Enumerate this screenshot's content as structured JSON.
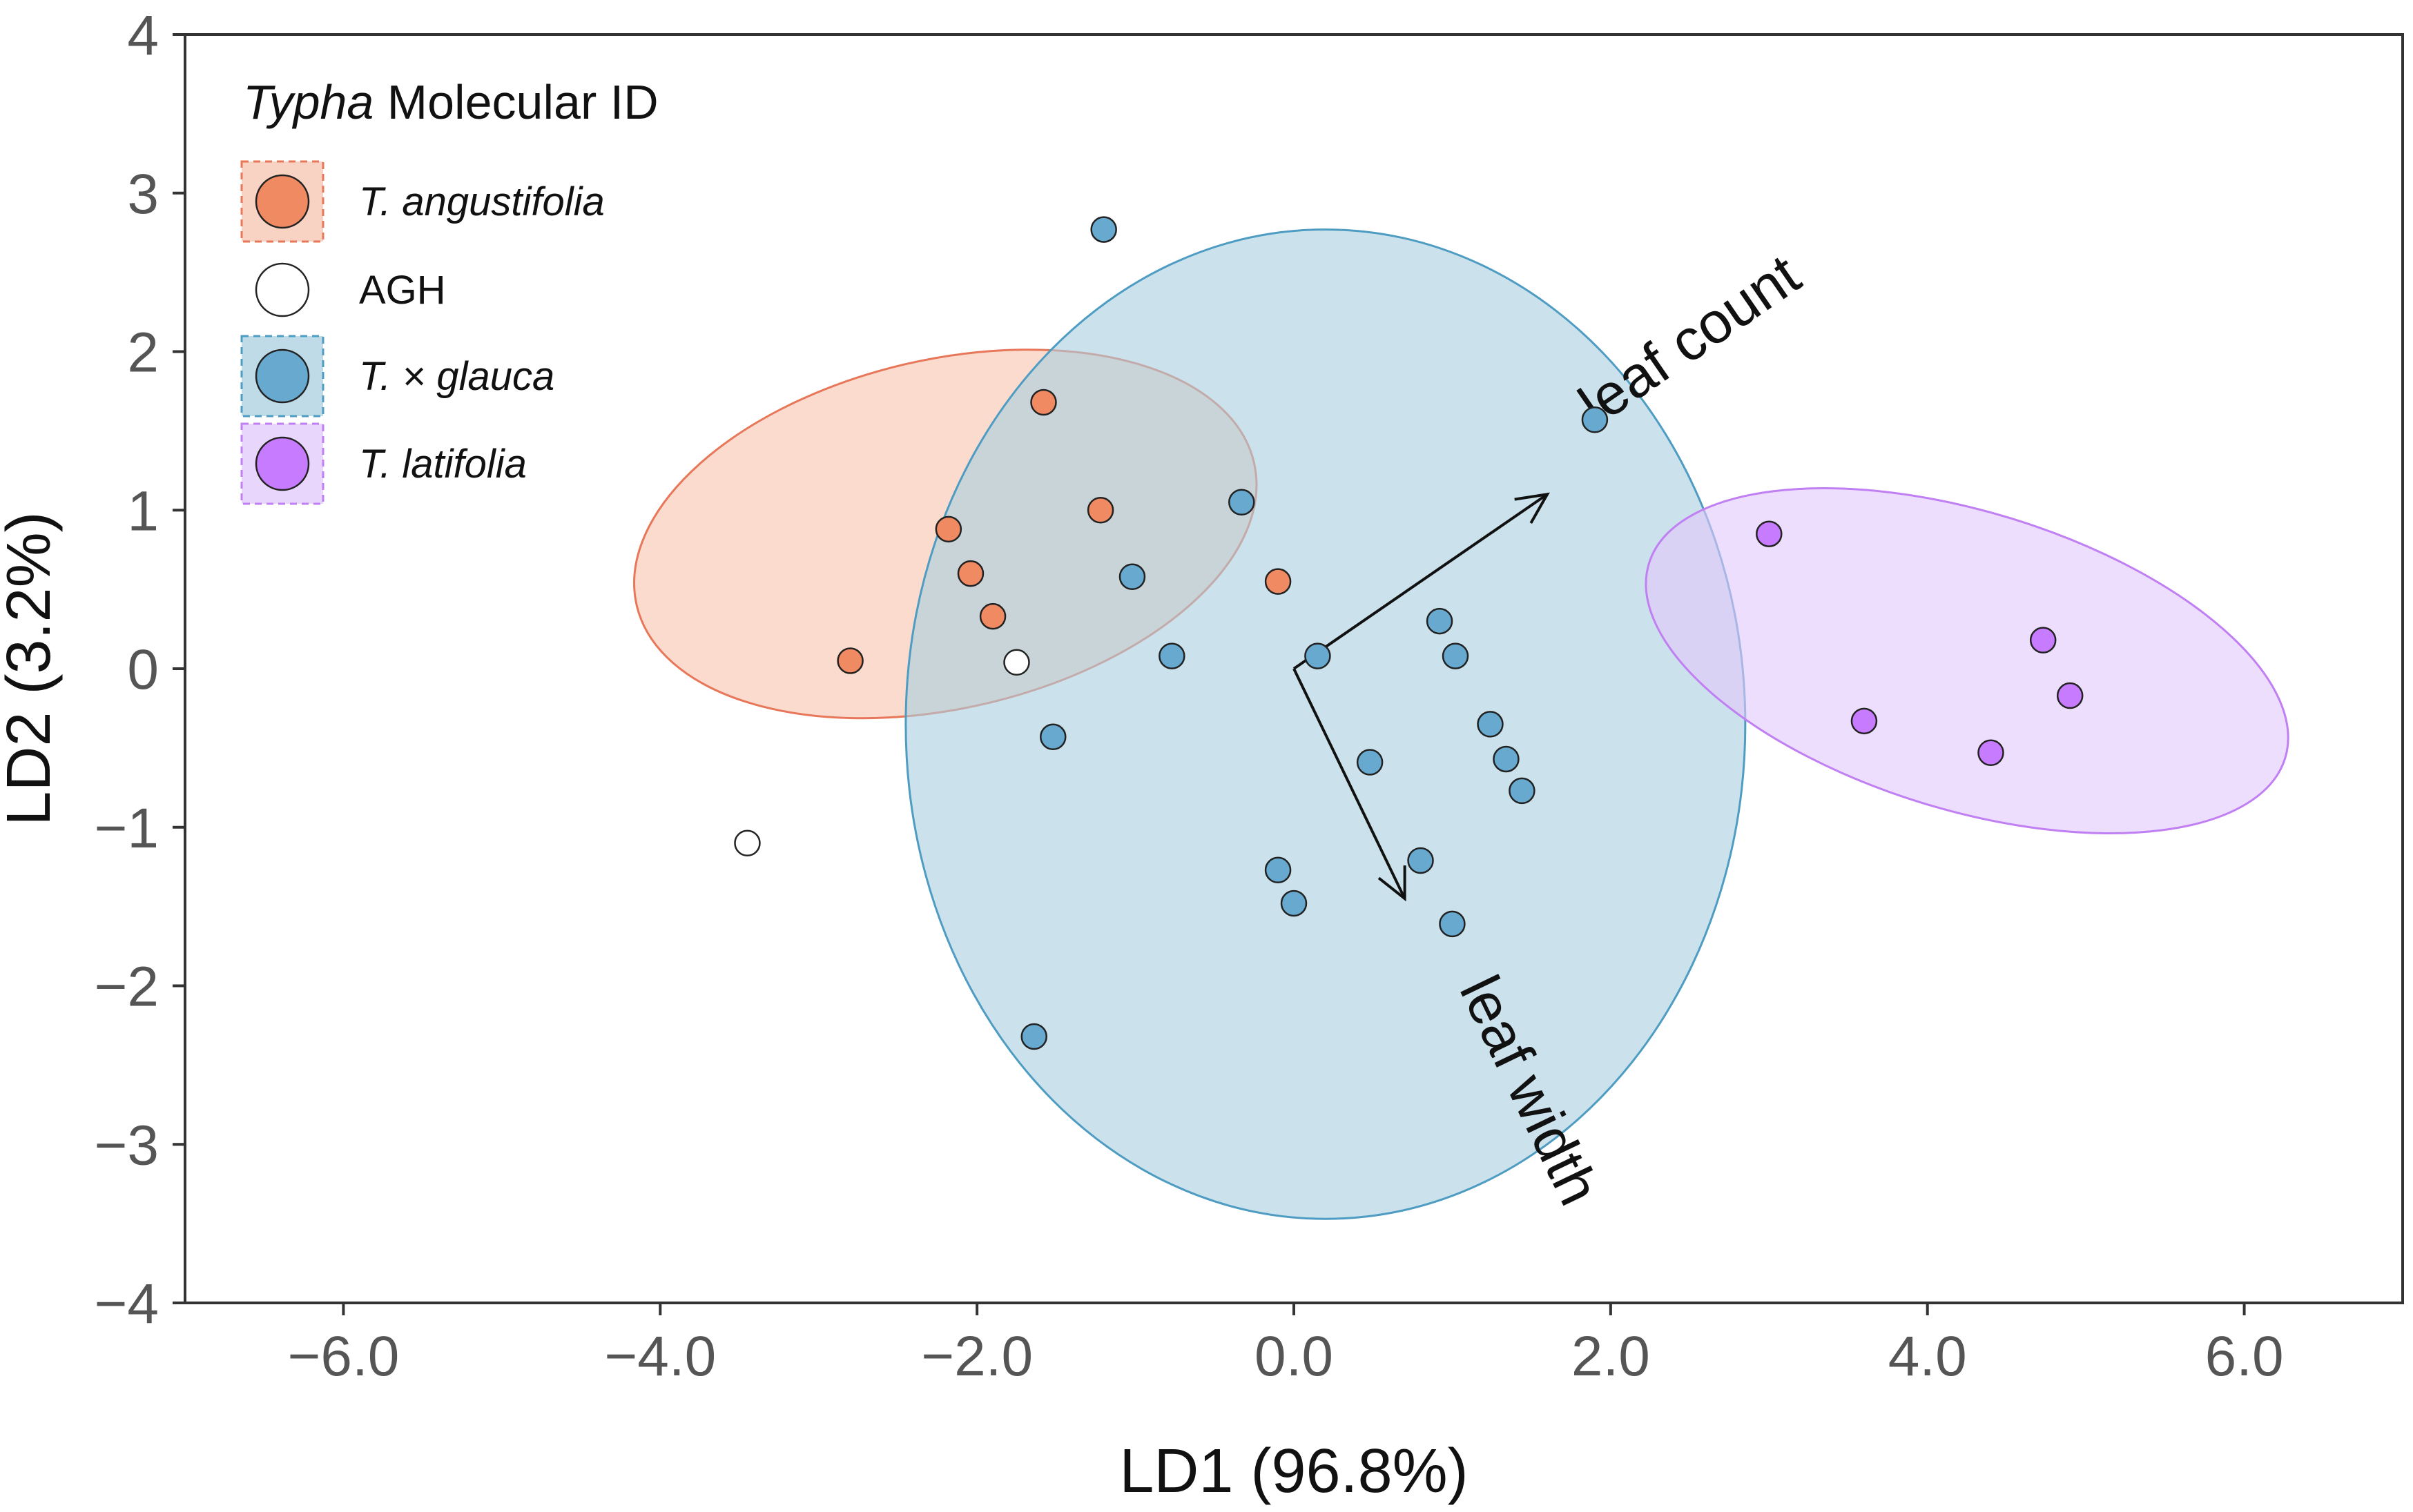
{
  "chart_data": {
    "type": "scatter",
    "title": "",
    "xlabel": "LD1 (96.8%)",
    "ylabel": "LD2 (3.2%)",
    "xlim": [
      -7.0,
      7.0
    ],
    "ylim": [
      -4.0,
      4.0
    ],
    "xticks": [
      -6.0,
      -4.0,
      -2.0,
      0.0,
      2.0,
      4.0,
      6.0
    ],
    "xtick_labels": [
      "−6.0",
      "−4.0",
      "−2.0",
      "0.0",
      "2.0",
      "4.0",
      "6.0"
    ],
    "yticks": [
      -4,
      -3,
      -2,
      -1,
      0,
      1,
      2,
      3,
      4
    ],
    "ytick_labels": [
      "−4",
      "−3",
      "−2",
      "−1",
      "0",
      "1",
      "2",
      "3",
      "4"
    ],
    "grid": false,
    "legend": {
      "title_italic": "Typha",
      "title_rest": " Molecular ID",
      "placement": "top-left"
    },
    "series": [
      {
        "name": "T. angustifolia",
        "italic": true,
        "color": "#ef8a62",
        "fill": "#f6c3ad",
        "border": "#e8775a",
        "ellipse": {
          "cx": -2.2,
          "cy": 0.85,
          "rx": 2.0,
          "ry": 1.1,
          "angle_deg": 13
        },
        "x": [
          -2.8,
          -1.58,
          -2.18,
          -1.22,
          -2.04,
          -1.9,
          -0.1
        ],
        "y": [
          0.05,
          1.68,
          0.88,
          1.0,
          0.6,
          0.33,
          0.55
        ]
      },
      {
        "name": "AGH",
        "italic": false,
        "color": "#ffffff",
        "fill": "#ffffff",
        "border": "#333333",
        "ellipse": null,
        "x": [
          -1.75,
          -3.45
        ],
        "y": [
          0.04,
          -1.1
        ]
      },
      {
        "name": "T. × glauca",
        "italic": true,
        "color": "#67a9cf",
        "fill": "#a9cfe0",
        "border": "#4f9cc3",
        "ellipse": {
          "cx": 0.2,
          "cy": -0.35,
          "rx": 2.65,
          "ry": 3.12,
          "angle_deg": 0
        },
        "x": [
          -1.2,
          1.9,
          -0.33,
          -1.02,
          -0.77,
          0.15,
          0.92,
          1.02,
          1.24,
          1.34,
          1.44,
          0.48,
          -1.52,
          0.8,
          -0.1,
          0.0,
          1.0,
          -1.64
        ],
        "y": [
          2.77,
          1.57,
          1.05,
          0.58,
          0.08,
          0.08,
          0.3,
          0.08,
          -0.35,
          -0.57,
          -0.77,
          -0.59,
          -0.43,
          -1.21,
          -1.27,
          -1.48,
          -1.61,
          -2.32
        ]
      },
      {
        "name": "T. latifolia",
        "italic": true,
        "color": "#c77cff",
        "fill": "#e2c8fb",
        "border": "#c07ff2",
        "ellipse": {
          "cx": 4.25,
          "cy": 0.05,
          "rx": 2.1,
          "ry": 0.94,
          "angle_deg": -17
        },
        "x": [
          3.0,
          4.73,
          4.9,
          3.6,
          4.4
        ],
        "y": [
          0.85,
          0.18,
          -0.17,
          -0.33,
          -0.53
        ]
      }
    ],
    "loadings": [
      {
        "name": "leaf count",
        "x": 1.6,
        "y": 1.1
      },
      {
        "name": "leaf width",
        "x": 0.7,
        "y": -1.45
      }
    ]
  }
}
